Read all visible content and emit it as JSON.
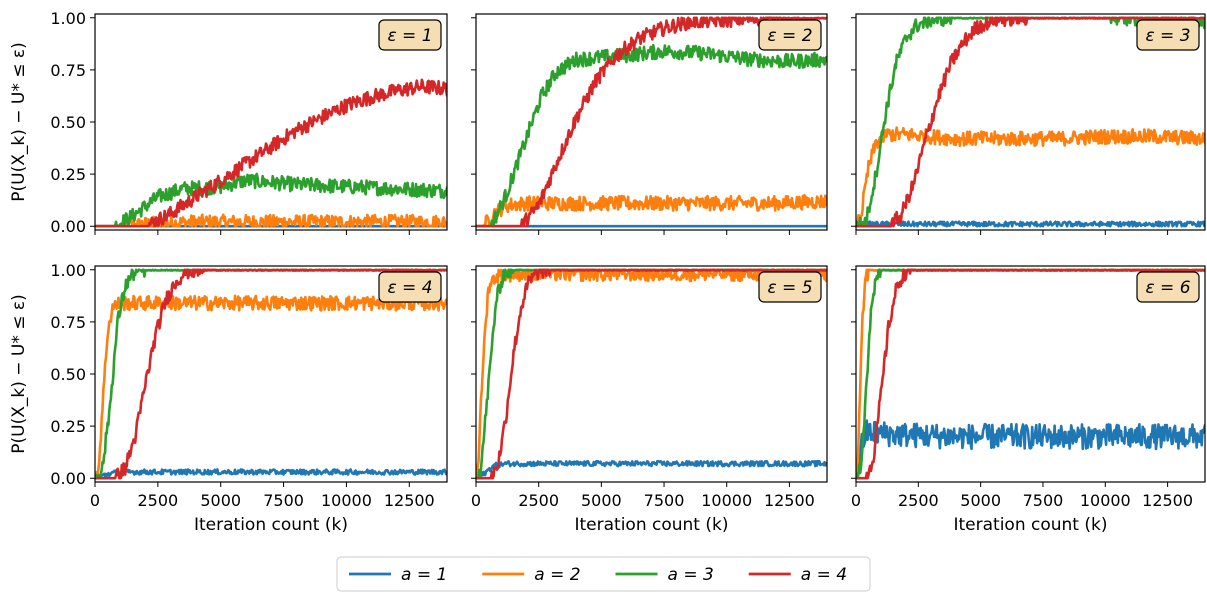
{
  "chart_data": {
    "type": "line",
    "layout": "2x3 grid of subplots",
    "shared_y": true,
    "xlabel": "Iteration count (k)",
    "ylabel": "P(U(X_k) − U* ≤ ε)",
    "xlim": [
      0,
      14000
    ],
    "ylim": [
      0,
      1
    ],
    "x_ticks": [
      0,
      2500,
      5000,
      7500,
      10000,
      12500
    ],
    "x_tick_labels": [
      "0",
      "2500",
      "5000",
      "7500",
      "10000",
      "12500"
    ],
    "y_ticks": [
      0,
      0.25,
      0.5,
      0.75,
      1.0
    ],
    "y_tick_labels": [
      "0.00",
      "0.25",
      "0.50",
      "0.75",
      "1.00"
    ],
    "legend_position": "bottom-center",
    "series_styles": [
      {
        "name": "a = 1",
        "color": "#1f77b4"
      },
      {
        "name": "a = 2",
        "color": "#ff7f0e"
      },
      {
        "name": "a = 3",
        "color": "#2ca02c"
      },
      {
        "name": "a = 4",
        "color": "#d62728"
      }
    ],
    "panels": [
      {
        "label": "ε = 1",
        "series": [
          {
            "name": "a = 1",
            "x": [
              0,
              2000,
              4000,
              6000,
              8000,
              10000,
              12000,
              14000
            ],
            "y": [
              0,
              0,
              0,
              0,
              0,
              0,
              0,
              0
            ]
          },
          {
            "name": "a = 2",
            "x": [
              0,
              1000,
              2000,
              4000,
              6000,
              8000,
              10000,
              12000,
              14000
            ],
            "y": [
              0,
              0,
              0.01,
              0.02,
              0.02,
              0.02,
              0.02,
              0.02,
              0.02
            ]
          },
          {
            "name": "a = 3",
            "x": [
              0,
              800,
              1500,
              2500,
              3500,
              5000,
              6000,
              7000,
              8000,
              10000,
              12000,
              14000
            ],
            "y": [
              0,
              0,
              0.05,
              0.14,
              0.18,
              0.19,
              0.22,
              0.21,
              0.2,
              0.19,
              0.18,
              0.17
            ]
          },
          {
            "name": "a = 3 fill",
            "skip": true
          },
          {
            "name": "a = 4",
            "x": [
              0,
              2000,
              3000,
              4000,
              5000,
              6000,
              7000,
              8000,
              9000,
              10000,
              11000,
              12000,
              13000,
              14000
            ],
            "y": [
              0,
              0,
              0.06,
              0.14,
              0.22,
              0.3,
              0.38,
              0.46,
              0.52,
              0.58,
              0.62,
              0.65,
              0.67,
              0.66
            ]
          }
        ]
      },
      {
        "label": "ε = 2",
        "series": [
          {
            "name": "a = 1",
            "x": [
              0,
              14000
            ],
            "y": [
              0,
              0
            ]
          },
          {
            "name": "a = 2",
            "x": [
              0,
              300,
              700,
              1200,
              2000,
              4000,
              6000,
              8000,
              10000,
              12000,
              14000
            ],
            "y": [
              0,
              0,
              0.06,
              0.1,
              0.11,
              0.11,
              0.11,
              0.11,
              0.11,
              0.11,
              0.12
            ]
          },
          {
            "name": "a = 3",
            "x": [
              0,
              600,
              1200,
              2000,
              2600,
              3200,
              4000,
              5000,
              6000,
              7500,
              9000,
              11000,
              12500,
              14000
            ],
            "y": [
              0,
              0,
              0.15,
              0.42,
              0.62,
              0.74,
              0.8,
              0.81,
              0.82,
              0.84,
              0.83,
              0.8,
              0.79,
              0.8
            ]
          },
          {
            "name": "a = 4",
            "x": [
              0,
              1800,
              2500,
              3200,
              4000,
              4800,
              5600,
              6500,
              7500,
              8500,
              10000,
              12000,
              14000
            ],
            "y": [
              0,
              0,
              0.1,
              0.3,
              0.52,
              0.7,
              0.82,
              0.9,
              0.95,
              0.98,
              0.99,
              1.0,
              1.0
            ]
          }
        ]
      },
      {
        "label": "ε = 3",
        "series": [
          {
            "name": "a = 1",
            "x": [
              0,
              14000
            ],
            "y": [
              0.01,
              0.01
            ]
          },
          {
            "name": "a = 2",
            "x": [
              0,
              200,
              500,
              800,
              1200,
              2000,
              4000,
              6000,
              8000,
              10000,
              12000,
              14000
            ],
            "y": [
              0,
              0.05,
              0.28,
              0.4,
              0.44,
              0.44,
              0.42,
              0.42,
              0.42,
              0.43,
              0.43,
              0.42
            ]
          },
          {
            "name": "a = 3",
            "x": [
              0,
              400,
              800,
              1200,
              1600,
              2000,
              2400,
              3000,
              4000,
              6000,
              10000,
              14000
            ],
            "y": [
              0,
              0.02,
              0.25,
              0.55,
              0.78,
              0.9,
              0.96,
              0.99,
              1.0,
              1.0,
              1.0,
              0.98
            ]
          },
          {
            "name": "a = 4",
            "x": [
              0,
              1300,
              1800,
              2300,
              2800,
              3300,
              3800,
              4300,
              4800,
              5500,
              7000,
              14000
            ],
            "y": [
              0,
              0,
              0.05,
              0.2,
              0.42,
              0.62,
              0.78,
              0.88,
              0.95,
              0.99,
              1.0,
              1.0
            ]
          }
        ]
      },
      {
        "label": "ε = 4",
        "series": [
          {
            "name": "a = 1",
            "x": [
              0,
              500,
              1000,
              4000,
              8000,
              12000,
              14000
            ],
            "y": [
              0,
              0.02,
              0.03,
              0.03,
              0.03,
              0.03,
              0.03
            ]
          },
          {
            "name": "a = 2",
            "x": [
              0,
              150,
              300,
              500,
              700,
              1000,
              2000,
              4000,
              6000,
              8000,
              10000,
              12000,
              14000
            ],
            "y": [
              0,
              0.05,
              0.35,
              0.7,
              0.82,
              0.84,
              0.84,
              0.84,
              0.84,
              0.84,
              0.84,
              0.84,
              0.84
            ]
          },
          {
            "name": "a = 3",
            "x": [
              0,
              300,
              600,
              900,
              1200,
              1500,
              2000,
              3000,
              14000
            ],
            "y": [
              0,
              0.05,
              0.35,
              0.75,
              0.92,
              0.98,
              1.0,
              1.0,
              1.0
            ]
          },
          {
            "name": "a = 4",
            "x": [
              0,
              800,
              1200,
              1600,
              2000,
              2400,
              2800,
              3200,
              3600,
              4500,
              14000
            ],
            "y": [
              0,
              0,
              0.05,
              0.2,
              0.45,
              0.68,
              0.85,
              0.94,
              0.99,
              1.0,
              1.0
            ]
          }
        ]
      },
      {
        "label": "ε = 5",
        "series": [
          {
            "name": "a = 1",
            "x": [
              0,
              300,
              700,
              1200,
              4000,
              8000,
              12000,
              14000
            ],
            "y": [
              0,
              0.02,
              0.06,
              0.07,
              0.07,
              0.07,
              0.07,
              0.07
            ]
          },
          {
            "name": "a = 2",
            "x": [
              0,
              100,
              300,
              500,
              800,
              1500,
              4000,
              8000,
              12000,
              14000
            ],
            "y": [
              0,
              0.1,
              0.6,
              0.92,
              0.97,
              0.98,
              0.98,
              0.98,
              0.98,
              0.98
            ]
          },
          {
            "name": "a = 3",
            "x": [
              0,
              200,
              500,
              800,
              1100,
              1500,
              2500,
              14000
            ],
            "y": [
              0,
              0.05,
              0.45,
              0.85,
              0.98,
              1.0,
              1.0,
              1.0
            ]
          },
          {
            "name": "a = 4",
            "x": [
              0,
              600,
              900,
              1200,
              1500,
              1800,
              2100,
              2500,
              3000,
              14000
            ],
            "y": [
              0,
              0,
              0.08,
              0.3,
              0.6,
              0.82,
              0.94,
              0.99,
              1.0,
              1.0
            ]
          }
        ]
      },
      {
        "label": "ε = 6",
        "series": [
          {
            "name": "a = 1",
            "x": [
              0,
              200,
              400,
              700,
              1500,
              4000,
              7000,
              10000,
              14000
            ],
            "y": [
              0,
              0.15,
              0.22,
              0.22,
              0.21,
              0.2,
              0.2,
              0.2,
              0.2
            ]
          },
          {
            "name": "a = 2",
            "x": [
              0,
              100,
              250,
              400,
              600,
              1000,
              14000
            ],
            "y": [
              0,
              0.15,
              0.75,
              0.97,
              1.0,
              1.0,
              1.0
            ]
          },
          {
            "name": "a = 3",
            "x": [
              0,
              200,
              400,
              600,
              800,
              1000,
              1500,
              14000
            ],
            "y": [
              0,
              0.05,
              0.4,
              0.8,
              0.95,
              1.0,
              1.0,
              1.0
            ]
          },
          {
            "name": "a = 4",
            "x": [
              0,
              400,
              700,
              1000,
              1300,
              1600,
              1900,
              2300,
              14000
            ],
            "y": [
              0,
              0,
              0.1,
              0.4,
              0.72,
              0.9,
              0.98,
              1.0,
              1.0
            ]
          }
        ]
      }
    ]
  },
  "legend": {
    "items": [
      {
        "label": "a = 1",
        "color": "#1f77b4"
      },
      {
        "label": "a = 2",
        "color": "#ff7f0e"
      },
      {
        "label": "a = 3",
        "color": "#2ca02c"
      },
      {
        "label": "a = 4",
        "color": "#d62728"
      }
    ]
  }
}
